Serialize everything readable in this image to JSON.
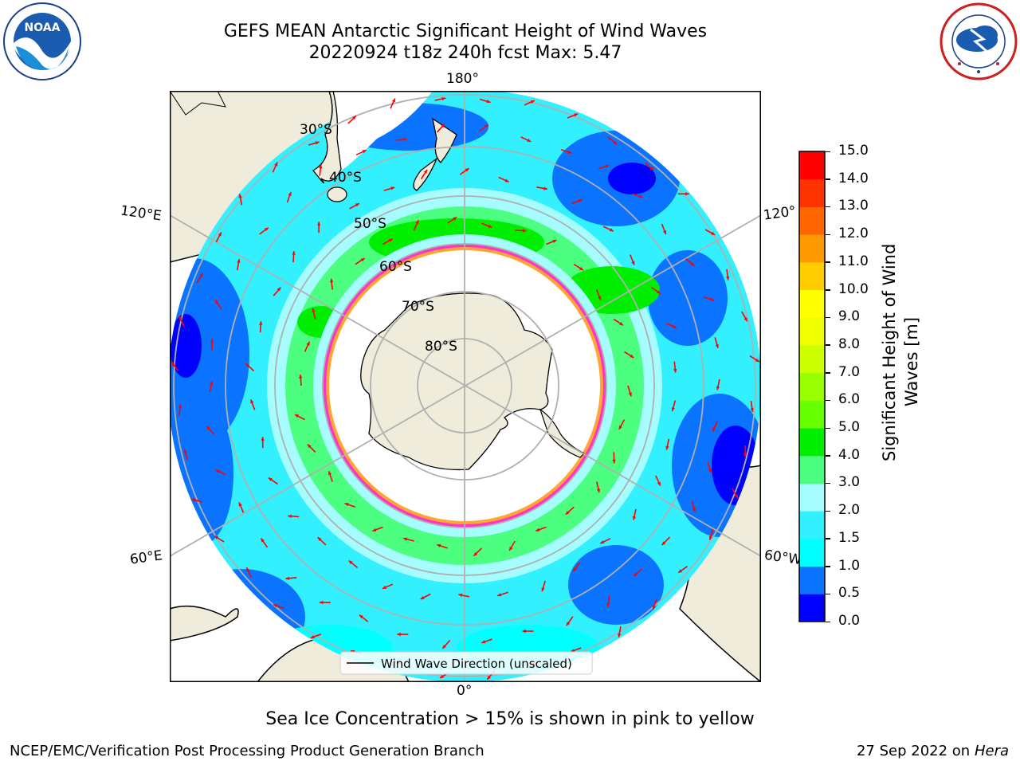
{
  "header": {
    "title_line1": "GEFS MEAN Antarctic Significant Height of Wind Waves",
    "title_line2": "20220924 t18z 240h fcst   Max: 5.47",
    "left_logo_text": "NOAA",
    "left_logo_ring_text": "NATIONAL OCEANIC AND ATMOSPHERIC ADMINISTRATION · U.S. DEPARTMENT OF COMMERCE",
    "right_logo_ring_text": "NATIONAL WEATHER SERVICE"
  },
  "map": {
    "projection": "south-polar stereographic",
    "longitude_labels": {
      "top": "180°",
      "bottom": "0°",
      "left_upper": "120°E",
      "left_lower": "60°E",
      "right_upper": "120°",
      "right_lower": "60°W"
    },
    "latitude_labels": [
      "30°S",
      "40°S",
      "50°S",
      "60°S",
      "70°S",
      "80°S"
    ],
    "legend_label": "Wind Wave Direction (unscaled)",
    "colors": {
      "land": "#efecdc",
      "ice_edge": "#ff33cc",
      "ice_inner": "#ffa533"
    }
  },
  "colorbar": {
    "title_line1": "Significant Height of Wind",
    "title_line2": "Waves [m]",
    "ticks": [
      "0.0",
      "0.5",
      "1.0",
      "1.5",
      "2.0",
      "3.0",
      "4.0",
      "5.0",
      "6.0",
      "7.0",
      "8.0",
      "9.0",
      "10.0",
      "11.0",
      "12.0",
      "13.0",
      "14.0",
      "15.0"
    ],
    "colors": [
      "#0000ff",
      "#0a73ff",
      "#00ffff",
      "#33f0ff",
      "#a6fdff",
      "#4dff80",
      "#00ee00",
      "#66ff00",
      "#99ff00",
      "#ccff00",
      "#f0ff00",
      "#ffff00",
      "#ffcc00",
      "#ff9900",
      "#ff6600",
      "#ff3300",
      "#ff0000"
    ]
  },
  "subtitle": "Sea Ice Concentration > 15% is shown in pink to yellow",
  "footer": {
    "left": "NCEP/EMC/Verification Post Processing Product Generation Branch",
    "right_date": "27 Sep 2022 on",
    "right_machine": "Hera"
  }
}
